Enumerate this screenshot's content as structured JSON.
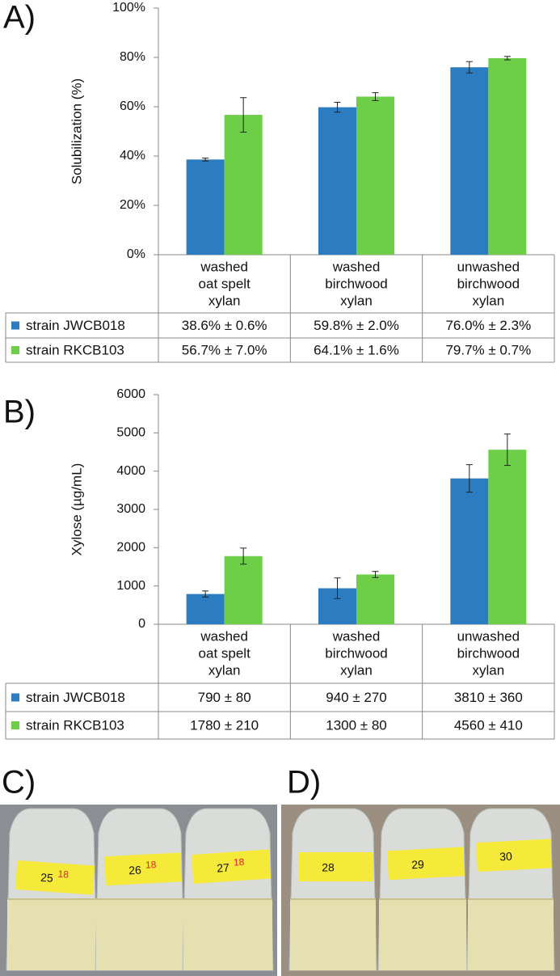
{
  "chart_data": [
    {
      "type": "bar",
      "panel": "A)",
      "y_label": "Solubilization (%)",
      "categories": [
        [
          "washed",
          "oat spelt",
          "xylan"
        ],
        [
          "washed",
          "birchwood",
          "xylan"
        ],
        [
          "unwashed",
          "birchwood",
          "xylan"
        ]
      ],
      "series": [
        {
          "name": "strain JWCB018",
          "color": "#2b7cc0",
          "values": [
            38.6,
            59.8,
            76.0
          ],
          "errors": [
            0.6,
            2.0,
            2.3
          ],
          "value_labels": [
            "38.6% ± 0.6%",
            "59.8% ± 2.0%",
            "76.0% ± 2.3%"
          ]
        },
        {
          "name": "strain RKCB103",
          "color": "#6ccf47",
          "values": [
            56.7,
            64.1,
            79.7
          ],
          "errors": [
            7.0,
            1.6,
            0.7
          ],
          "value_labels": [
            "56.7% ± 7.0%",
            "64.1% ± 1.6%",
            "79.7% ± 0.7%"
          ]
        }
      ],
      "ylim": [
        0,
        100
      ],
      "yticks": [
        {
          "value": 0,
          "label": "0%"
        },
        {
          "value": 20,
          "label": "20%"
        },
        {
          "value": 40,
          "label": "40%"
        },
        {
          "value": 60,
          "label": "60%"
        },
        {
          "value": 80,
          "label": "80%"
        },
        {
          "value": 100,
          "label": "100%"
        }
      ],
      "grid": false
    },
    {
      "type": "bar",
      "panel": "B)",
      "y_label": "Xylose (µg/mL)",
      "categories": [
        [
          "washed",
          "oat spelt",
          "xylan"
        ],
        [
          "washed",
          "birchwood",
          "xylan"
        ],
        [
          "unwashed",
          "birchwood",
          "xylan"
        ]
      ],
      "series": [
        {
          "name": "strain JWCB018",
          "color": "#2b7cc0",
          "values": [
            790,
            940,
            3810
          ],
          "errors": [
            80,
            270,
            360
          ],
          "value_labels": [
            "790 ± 80",
            "940 ± 270",
            "3810 ± 360"
          ]
        },
        {
          "name": "strain RKCB103",
          "color": "#6ccf47",
          "values": [
            1780,
            1300,
            4560
          ],
          "errors": [
            210,
            80,
            410
          ],
          "value_labels": [
            "1780 ± 210",
            "1300 ± 80",
            "4560 ± 410"
          ]
        }
      ],
      "ylim": [
        0,
        6000
      ],
      "yticks": [
        0,
        1000,
        2000,
        3000,
        4000,
        5000,
        6000
      ],
      "grid": false
    }
  ],
  "photos": [
    {
      "panel": "C)",
      "tubes": [
        {
          "number": "25",
          "note": "18"
        },
        {
          "number": "26",
          "note": "18"
        },
        {
          "number": "27",
          "note": "18"
        }
      ]
    },
    {
      "panel": "D)",
      "tubes": [
        {
          "number": "28"
        },
        {
          "number": "29"
        },
        {
          "number": "30"
        }
      ]
    }
  ]
}
